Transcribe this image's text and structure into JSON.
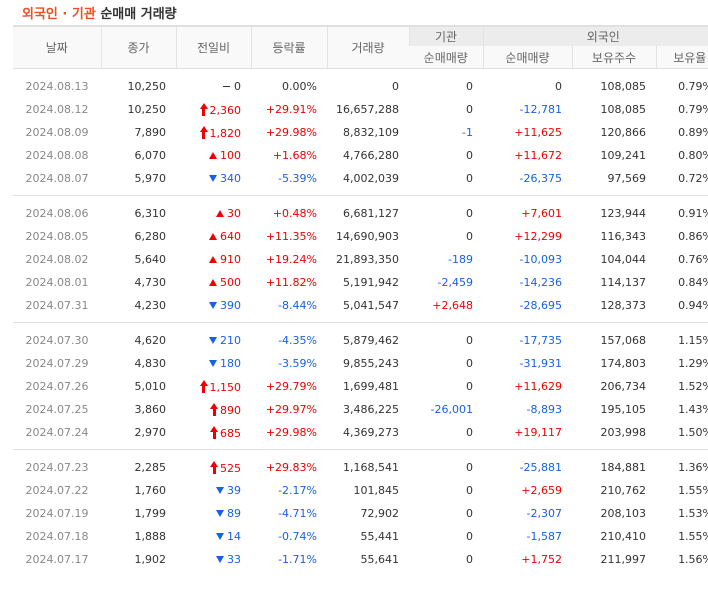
{
  "title": {
    "accent": "외국인 · 기관",
    "rest": " 순매매 거래량"
  },
  "colors": {
    "accent": "#f04e23",
    "up": "#ee0000",
    "down": "#1761e6",
    "header_bg": "#f9f9f9",
    "group_bg": "#ececec"
  },
  "columns": {
    "date": "날짜",
    "close": "종가",
    "change": "전일비",
    "rate": "등락률",
    "volume": "거래량",
    "inst_group": "기관",
    "inst_net": "순매매량",
    "foreign_group": "외국인",
    "foreign_net": "순매매량",
    "foreign_shares": "보유주수",
    "foreign_ratio": "보유율"
  },
  "groups": [
    [
      {
        "date": "2024.08.13",
        "close": "10,250",
        "dir": "flat",
        "change": "0",
        "rate": "0.00%",
        "volume": "0",
        "inst": "0",
        "foreign": "0",
        "shares": "108,085",
        "ratio": "0.79%"
      },
      {
        "date": "2024.08.12",
        "close": "10,250",
        "dir": "limit-up",
        "change": "2,360",
        "rate": "+29.91%",
        "volume": "16,657,288",
        "inst": "0",
        "foreign": "-12,781",
        "shares": "108,085",
        "ratio": "0.79%"
      },
      {
        "date": "2024.08.09",
        "close": "7,890",
        "dir": "limit-up",
        "change": "1,820",
        "rate": "+29.98%",
        "volume": "8,832,109",
        "inst": "-1",
        "foreign": "+11,625",
        "shares": "120,866",
        "ratio": "0.89%"
      },
      {
        "date": "2024.08.08",
        "close": "6,070",
        "dir": "up",
        "change": "100",
        "rate": "+1.68%",
        "volume": "4,766,280",
        "inst": "0",
        "foreign": "+11,672",
        "shares": "109,241",
        "ratio": "0.80%"
      },
      {
        "date": "2024.08.07",
        "close": "5,970",
        "dir": "down",
        "change": "340",
        "rate": "-5.39%",
        "volume": "4,002,039",
        "inst": "0",
        "foreign": "-26,375",
        "shares": "97,569",
        "ratio": "0.72%"
      }
    ],
    [
      {
        "date": "2024.08.06",
        "close": "6,310",
        "dir": "up",
        "change": "30",
        "rate": "+0.48%",
        "volume": "6,681,127",
        "inst": "0",
        "foreign": "+7,601",
        "shares": "123,944",
        "ratio": "0.91%"
      },
      {
        "date": "2024.08.05",
        "close": "6,280",
        "dir": "up",
        "change": "640",
        "rate": "+11.35%",
        "volume": "14,690,903",
        "inst": "0",
        "foreign": "+12,299",
        "shares": "116,343",
        "ratio": "0.86%"
      },
      {
        "date": "2024.08.02",
        "close": "5,640",
        "dir": "up",
        "change": "910",
        "rate": "+19.24%",
        "volume": "21,893,350",
        "inst": "-189",
        "foreign": "-10,093",
        "shares": "104,044",
        "ratio": "0.76%"
      },
      {
        "date": "2024.08.01",
        "close": "4,730",
        "dir": "up",
        "change": "500",
        "rate": "+11.82%",
        "volume": "5,191,942",
        "inst": "-2,459",
        "foreign": "-14,236",
        "shares": "114,137",
        "ratio": "0.84%"
      },
      {
        "date": "2024.07.31",
        "close": "4,230",
        "dir": "down",
        "change": "390",
        "rate": "-8.44%",
        "volume": "5,041,547",
        "inst": "+2,648",
        "foreign": "-28,695",
        "shares": "128,373",
        "ratio": "0.94%"
      }
    ],
    [
      {
        "date": "2024.07.30",
        "close": "4,620",
        "dir": "down",
        "change": "210",
        "rate": "-4.35%",
        "volume": "5,879,462",
        "inst": "0",
        "foreign": "-17,735",
        "shares": "157,068",
        "ratio": "1.15%"
      },
      {
        "date": "2024.07.29",
        "close": "4,830",
        "dir": "down",
        "change": "180",
        "rate": "-3.59%",
        "volume": "9,855,243",
        "inst": "0",
        "foreign": "-31,931",
        "shares": "174,803",
        "ratio": "1.29%"
      },
      {
        "date": "2024.07.26",
        "close": "5,010",
        "dir": "limit-up",
        "change": "1,150",
        "rate": "+29.79%",
        "volume": "1,699,481",
        "inst": "0",
        "foreign": "+11,629",
        "shares": "206,734",
        "ratio": "1.52%"
      },
      {
        "date": "2024.07.25",
        "close": "3,860",
        "dir": "limit-up",
        "change": "890",
        "rate": "+29.97%",
        "volume": "3,486,225",
        "inst": "-26,001",
        "foreign": "-8,893",
        "shares": "195,105",
        "ratio": "1.43%"
      },
      {
        "date": "2024.07.24",
        "close": "2,970",
        "dir": "limit-up",
        "change": "685",
        "rate": "+29.98%",
        "volume": "4,369,273",
        "inst": "0",
        "foreign": "+19,117",
        "shares": "203,998",
        "ratio": "1.50%"
      }
    ],
    [
      {
        "date": "2024.07.23",
        "close": "2,285",
        "dir": "limit-up",
        "change": "525",
        "rate": "+29.83%",
        "volume": "1,168,541",
        "inst": "0",
        "foreign": "-25,881",
        "shares": "184,881",
        "ratio": "1.36%"
      },
      {
        "date": "2024.07.22",
        "close": "1,760",
        "dir": "down",
        "change": "39",
        "rate": "-2.17%",
        "volume": "101,845",
        "inst": "0",
        "foreign": "+2,659",
        "shares": "210,762",
        "ratio": "1.55%"
      },
      {
        "date": "2024.07.19",
        "close": "1,799",
        "dir": "down",
        "change": "89",
        "rate": "-4.71%",
        "volume": "72,902",
        "inst": "0",
        "foreign": "-2,307",
        "shares": "208,103",
        "ratio": "1.53%"
      },
      {
        "date": "2024.07.18",
        "close": "1,888",
        "dir": "down",
        "change": "14",
        "rate": "-0.74%",
        "volume": "55,441",
        "inst": "0",
        "foreign": "-1,587",
        "shares": "210,410",
        "ratio": "1.55%"
      },
      {
        "date": "2024.07.17",
        "close": "1,902",
        "dir": "down",
        "change": "33",
        "rate": "-1.71%",
        "volume": "55,641",
        "inst": "0",
        "foreign": "+1,752",
        "shares": "211,997",
        "ratio": "1.56%"
      }
    ]
  ]
}
